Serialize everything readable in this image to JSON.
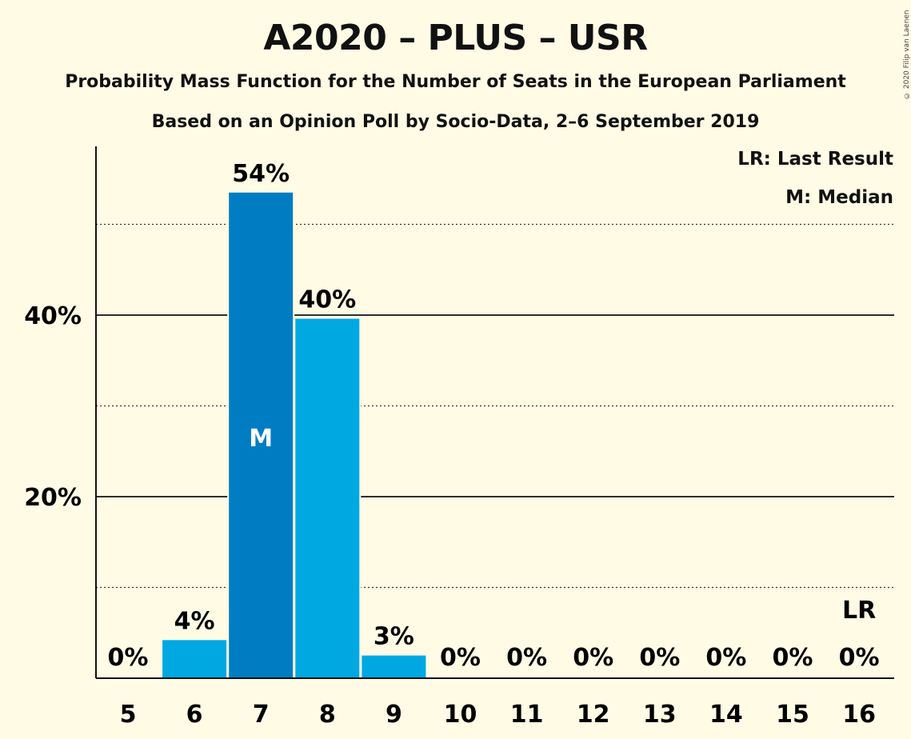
{
  "chart_data": {
    "type": "bar",
    "title": "A2020 – PLUS – USR",
    "subtitle": "Probability Mass Function for the Number of Seats in the European Parliament",
    "subtitle2": "Based on an Opinion Poll by Socio-Data, 2–6 September 2019",
    "copyright": "© 2020 Filip van Laenen",
    "legend": {
      "placement": "top-right",
      "entries": [
        "LR: Last Result",
        "M: Median"
      ]
    },
    "categories": [
      "5",
      "6",
      "7",
      "8",
      "9",
      "10",
      "11",
      "12",
      "13",
      "14",
      "15",
      "16"
    ],
    "values": [
      0,
      4.2,
      53.5,
      39.6,
      2.5,
      0,
      0,
      0,
      0,
      0,
      0,
      0
    ],
    "value_labels": [
      "0%",
      "4%",
      "54%",
      "40%",
      "3%",
      "0%",
      "0%",
      "0%",
      "0%",
      "0%",
      "0%",
      "0%"
    ],
    "median_category": "7",
    "median_marker": "M",
    "last_result_category": "16",
    "last_result_marker": "LR",
    "ylim": [
      0,
      58
    ],
    "yticks": [
      20,
      40
    ],
    "ytick_labels": [
      "20%",
      "40%"
    ],
    "dotted_gridlines": [
      10,
      30,
      50
    ],
    "solid_gridlines": [
      20,
      40
    ],
    "colors": {
      "bar": "#00a8e2",
      "median_bar": "#007dc2",
      "background": "#fffbe5"
    }
  }
}
